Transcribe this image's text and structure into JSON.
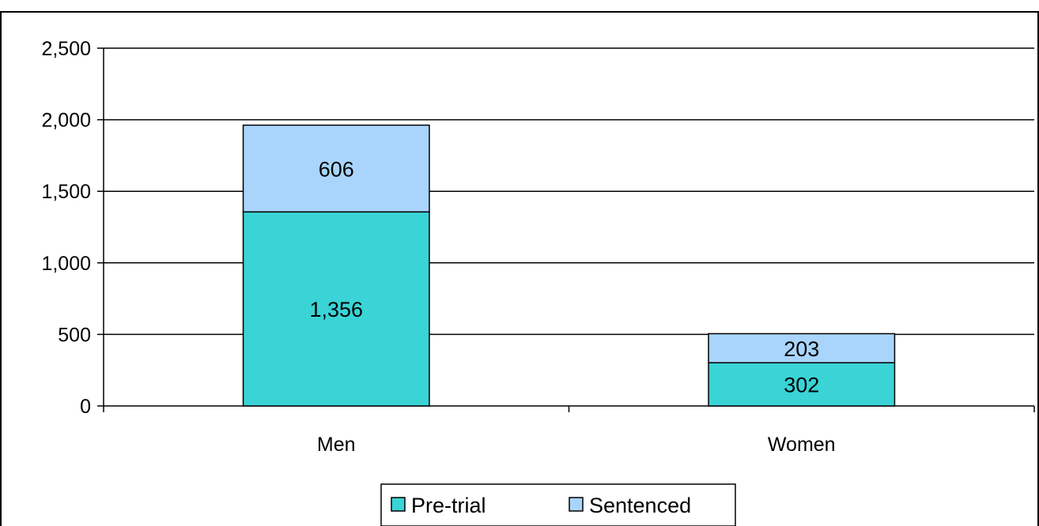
{
  "chart_data": {
    "type": "bar",
    "stacked": true,
    "categories": [
      "Men",
      "Women"
    ],
    "series": [
      {
        "name": "Pre-trial",
        "values": [
          1356,
          302
        ],
        "labels": [
          "1,356",
          "302"
        ],
        "color": "#3ad4d6"
      },
      {
        "name": "Sentenced",
        "values": [
          606,
          203
        ],
        "labels": [
          "606",
          "203"
        ],
        "color": "#a9d5fd"
      }
    ],
    "ylim": [
      0,
      2500
    ],
    "yticks": [
      0,
      500,
      1000,
      1500,
      2000,
      2500
    ],
    "ytick_labels": [
      "0",
      "500",
      "1,000",
      "1,500",
      "2,000",
      "2,500"
    ],
    "grid": true,
    "legend": "bottom",
    "title": "",
    "xlabel": "",
    "ylabel": ""
  }
}
